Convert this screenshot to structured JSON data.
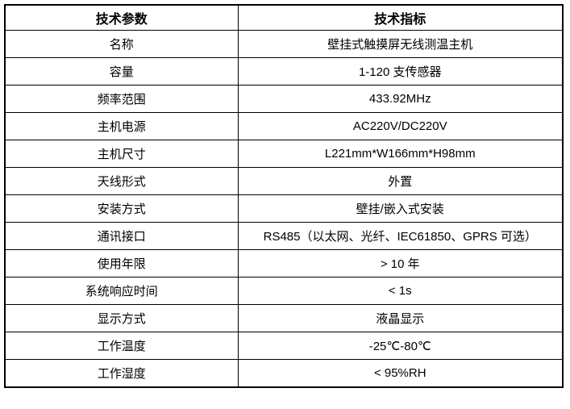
{
  "table": {
    "headers": [
      {
        "label": "技术参数"
      },
      {
        "label": "技术指标"
      }
    ],
    "rows": [
      {
        "param": "名称",
        "value": "壁挂式触摸屏无线测温主机"
      },
      {
        "param": "容量",
        "value": "1-120 支传感器"
      },
      {
        "param": "频率范围",
        "value": "433.92MHz"
      },
      {
        "param": "主机电源",
        "value": "AC220V/DC220V"
      },
      {
        "param": "主机尺寸",
        "value": "L221mm*W166mm*H98mm"
      },
      {
        "param": "天线形式",
        "value": "外置"
      },
      {
        "param": "安装方式",
        "value": "壁挂/嵌入式安装"
      },
      {
        "param": "通讯接口",
        "value": "RS485（以太网、光纤、IEC61850、GPRS 可选）"
      },
      {
        "param": "使用年限",
        "value": "> 10 年"
      },
      {
        "param": "系统响应时间",
        "value": "< 1s"
      },
      {
        "param": "显示方式",
        "value": "液晶显示"
      },
      {
        "param": "工作温度",
        "value": "-25℃-80℃"
      },
      {
        "param": "工作湿度",
        "value": "< 95%RH"
      }
    ],
    "colors": {
      "border": "#000000",
      "text": "#000000",
      "background": "#ffffff"
    }
  }
}
